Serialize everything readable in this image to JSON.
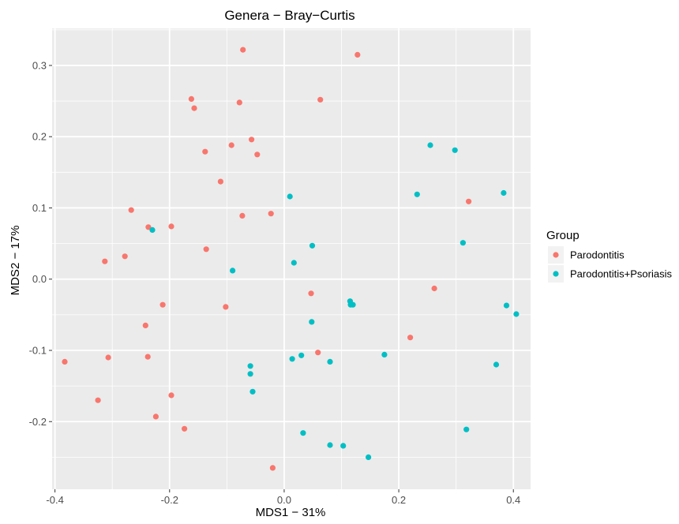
{
  "chart_data": {
    "type": "scatter",
    "title": "Genera − Bray−Curtis",
    "xlabel": "MDS1 − 31%",
    "ylabel": "MDS2 − 17%",
    "xlim": [
      -0.405,
      0.43
    ],
    "ylim": [
      -0.295,
      0.352
    ],
    "x_ticks": [
      -0.4,
      -0.2,
      0.0,
      0.2,
      0.4
    ],
    "x_tick_labels": [
      "-0.4",
      "-0.2",
      "0.0",
      "0.2",
      "0.4"
    ],
    "y_ticks": [
      -0.2,
      -0.1,
      0.0,
      0.1,
      0.2,
      0.3
    ],
    "y_tick_labels": [
      "-0.2",
      "-0.1",
      "0.0",
      "0.1",
      "0.2",
      "0.3"
    ],
    "grid": true,
    "panel_background": "#ebebeb",
    "grid_color": "#ffffff",
    "legend": {
      "title": "Group",
      "placement": "right",
      "entries": [
        "Parodontitis",
        "Parodontitis+Psoriasis"
      ]
    },
    "series": [
      {
        "name": "Parodontitis",
        "color": "#f8766d",
        "points": [
          [
            -0.072,
            0.322
          ],
          [
            0.128,
            0.315
          ],
          [
            -0.162,
            0.253
          ],
          [
            -0.078,
            0.248
          ],
          [
            0.063,
            0.252
          ],
          [
            -0.157,
            0.24
          ],
          [
            -0.057,
            0.196
          ],
          [
            -0.092,
            0.188
          ],
          [
            -0.047,
            0.175
          ],
          [
            -0.138,
            0.179
          ],
          [
            -0.111,
            0.137
          ],
          [
            -0.267,
            0.097
          ],
          [
            -0.023,
            0.092
          ],
          [
            -0.073,
            0.089
          ],
          [
            0.322,
            0.109
          ],
          [
            -0.237,
            0.073
          ],
          [
            -0.197,
            0.074
          ],
          [
            -0.136,
            0.042
          ],
          [
            -0.313,
            0.025
          ],
          [
            -0.278,
            0.032
          ],
          [
            0.047,
            -0.02
          ],
          [
            0.262,
            -0.013
          ],
          [
            -0.212,
            -0.036
          ],
          [
            -0.102,
            -0.039
          ],
          [
            -0.242,
            -0.065
          ],
          [
            0.059,
            -0.103
          ],
          [
            0.22,
            -0.082
          ],
          [
            -0.383,
            -0.116
          ],
          [
            -0.307,
            -0.11
          ],
          [
            -0.238,
            -0.109
          ],
          [
            -0.325,
            -0.17
          ],
          [
            -0.197,
            -0.163
          ],
          [
            -0.224,
            -0.193
          ],
          [
            -0.174,
            -0.21
          ],
          [
            -0.02,
            -0.265
          ]
        ]
      },
      {
        "name": "Parodontitis+Psoriasis",
        "color": "#00bfc4",
        "points": [
          [
            0.255,
            0.188
          ],
          [
            0.298,
            0.181
          ],
          [
            0.01,
            0.116
          ],
          [
            0.232,
            0.119
          ],
          [
            0.383,
            0.121
          ],
          [
            -0.23,
            0.069
          ],
          [
            0.049,
            0.047
          ],
          [
            0.312,
            0.051
          ],
          [
            0.017,
            0.023
          ],
          [
            -0.09,
            0.012
          ],
          [
            0.115,
            -0.031
          ],
          [
            0.12,
            -0.036
          ],
          [
            0.116,
            -0.036
          ],
          [
            0.388,
            -0.037
          ],
          [
            0.405,
            -0.049
          ],
          [
            0.048,
            -0.06
          ],
          [
            0.175,
            -0.106
          ],
          [
            0.03,
            -0.107
          ],
          [
            0.014,
            -0.112
          ],
          [
            0.08,
            -0.116
          ],
          [
            -0.059,
            -0.122
          ],
          [
            -0.059,
            -0.133
          ],
          [
            0.37,
            -0.12
          ],
          [
            -0.055,
            -0.158
          ],
          [
            0.033,
            -0.216
          ],
          [
            0.318,
            -0.211
          ],
          [
            0.08,
            -0.233
          ],
          [
            0.103,
            -0.234
          ],
          [
            0.147,
            -0.25
          ]
        ]
      }
    ]
  }
}
